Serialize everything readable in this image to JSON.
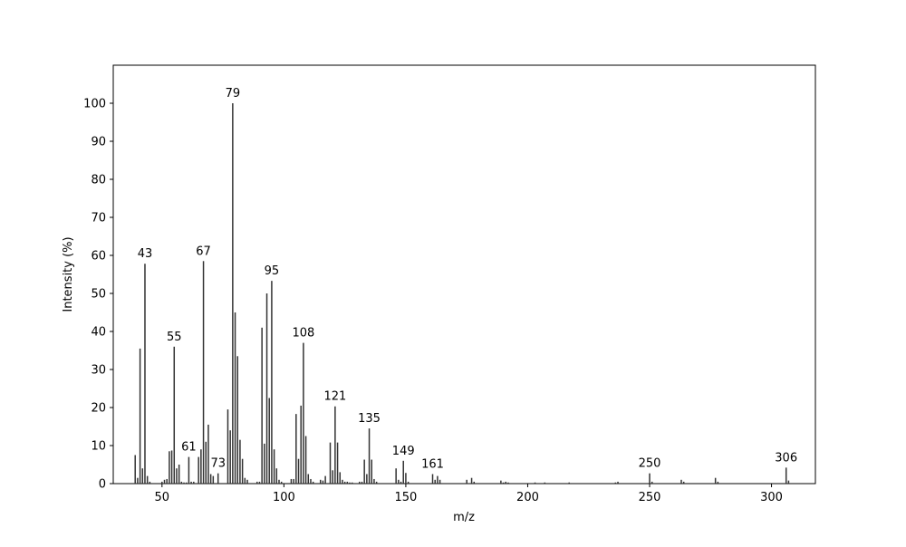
{
  "chart_data": {
    "type": "bar",
    "x_label": "m/z",
    "y_label": "Intensity (%)",
    "color": "#333333",
    "x": [
      39,
      40,
      41,
      42,
      43,
      44,
      45,
      50,
      51,
      52,
      53,
      54,
      55,
      56,
      57,
      58,
      59,
      60,
      61,
      62,
      63,
      65,
      66,
      67,
      68,
      69,
      70,
      71,
      73,
      77,
      78,
      79,
      80,
      81,
      82,
      83,
      84,
      85,
      89,
      90,
      91,
      92,
      93,
      94,
      95,
      96,
      97,
      98,
      99,
      103,
      104,
      105,
      106,
      107,
      108,
      109,
      110,
      111,
      112,
      115,
      116,
      117,
      119,
      120,
      121,
      122,
      123,
      124,
      125,
      126,
      127,
      128,
      131,
      132,
      133,
      134,
      135,
      136,
      137,
      138,
      146,
      147,
      148,
      149,
      150,
      151,
      161,
      162,
      163,
      164,
      175,
      177,
      178,
      189,
      190,
      191,
      192,
      203,
      207,
      217,
      236,
      237,
      250,
      251,
      263,
      264,
      277,
      278,
      306,
      307
    ],
    "values": [
      7.5,
      1.5,
      35.5,
      4,
      57.8,
      2,
      0.5,
      0.5,
      1,
      1.2,
      8.5,
      8.7,
      36,
      4,
      5,
      0.5,
      0.3,
      0.3,
      7,
      0.5,
      0.5,
      7,
      9,
      58.5,
      11,
      15.5,
      2.5,
      2,
      2.7,
      19.5,
      14,
      100,
      45,
      33.5,
      11.5,
      6.5,
      1.5,
      1,
      0.5,
      0.5,
      41,
      10.5,
      50,
      22.5,
      53.3,
      9,
      4,
      1,
      0.5,
      1.2,
      1.2,
      18.3,
      6.5,
      20.5,
      37,
      12.5,
      2.5,
      1.2,
      0.5,
      1,
      0.8,
      2,
      10.8,
      3.5,
      20.3,
      10.8,
      3,
      1,
      0.5,
      0.5,
      0.3,
      0.3,
      0.5,
      0.5,
      6.3,
      2.5,
      14.5,
      6.3,
      1.2,
      0.5,
      4,
      1,
      0.5,
      6,
      2.8,
      0.5,
      2.5,
      1,
      2,
      1,
      1,
      1.5,
      0.5,
      0.8,
      0.3,
      0.5,
      0.3,
      0.3,
      0.3,
      0.3,
      0.3,
      0.5,
      2.7,
      0.5,
      1,
      0.5,
      1.5,
      0.5,
      4.2,
      0.8
    ],
    "peak_labels": [
      43,
      55,
      61,
      67,
      73,
      79,
      95,
      108,
      121,
      135,
      149,
      161,
      250,
      306
    ],
    "xlim": [
      30,
      318
    ],
    "ylim": [
      0,
      110
    ],
    "xticks": [
      50,
      100,
      150,
      200,
      250,
      300
    ],
    "yticks": [
      0,
      10,
      20,
      30,
      40,
      50,
      60,
      70,
      80,
      90,
      100
    ]
  }
}
